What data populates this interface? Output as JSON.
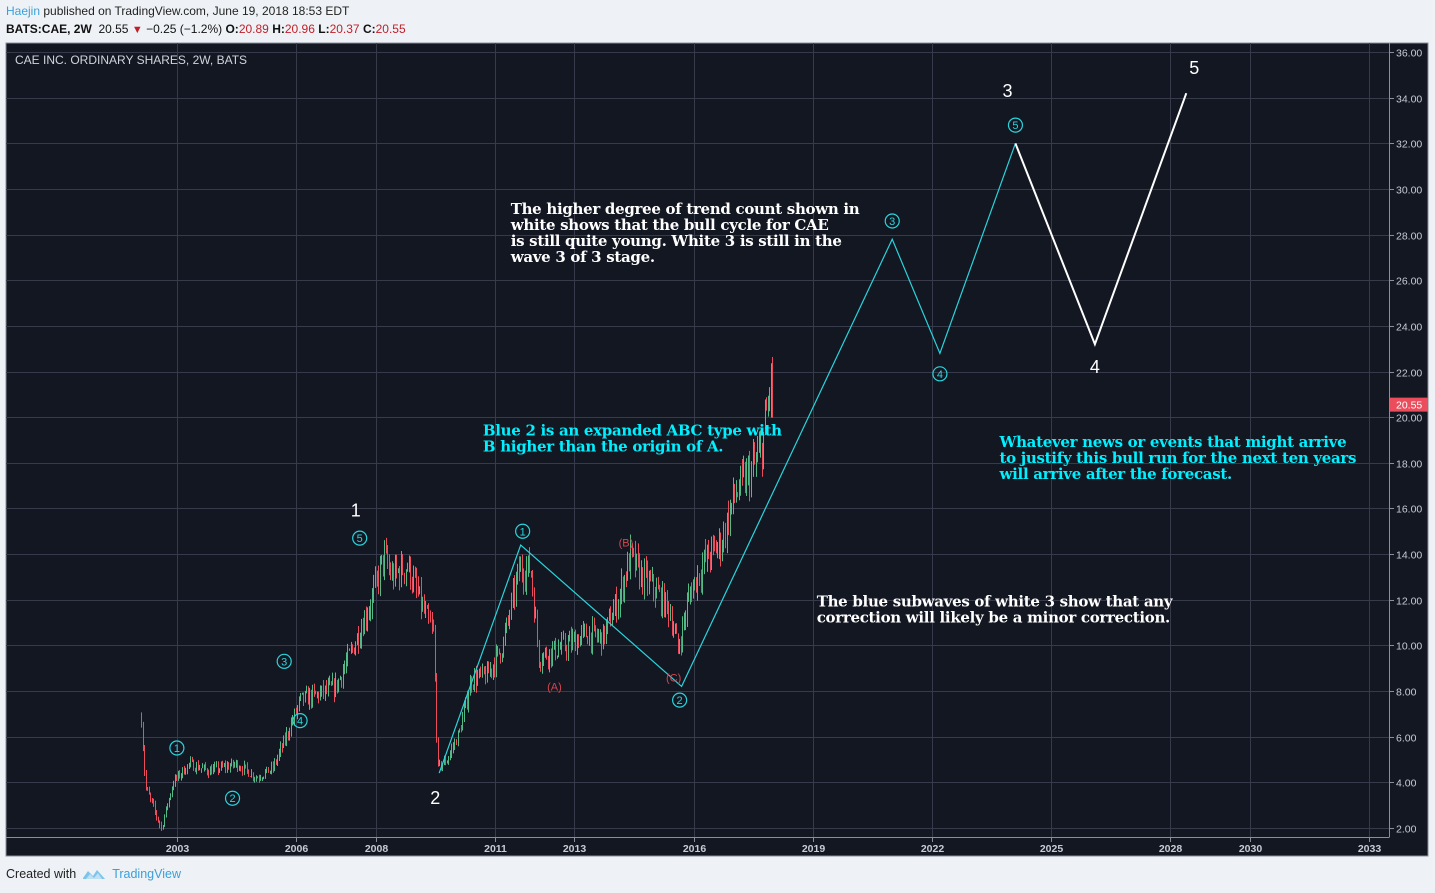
{
  "header": {
    "author": "Haejin",
    "published_text": "published on TradingView.com, June 19, 2018 18:53 EDT",
    "symbol": "BATS:CAE, 2W",
    "last": "20.55",
    "change": "−0.25 (−1.2%)",
    "open_label": "O:",
    "open": "20.89",
    "high_label": "H:",
    "high": "20.96",
    "low_label": "L:",
    "low": "20.37",
    "close_label": "C:",
    "close": "20.55"
  },
  "footer": {
    "created_with": "Created with",
    "brand": "TradingView"
  },
  "colors": {
    "background": "#131722",
    "grid": "#363a4a",
    "up": "#53b987",
    "down": "#eb4d5c",
    "wave_blue": "#2ad4dc",
    "wave_white": "#ffffff",
    "abc_red": "#d64550",
    "price_tag": "#eb4d5c",
    "note_cyan": "#00f0ff"
  },
  "chart_data": {
    "type": "candlestick",
    "title": "CAE INC. ORDINARY SHARES, 2W, BATS",
    "xlabel": "",
    "ylabel": "",
    "xlim": [
      1999.2,
      2034.0
    ],
    "ylim": [
      1.6,
      36.4
    ],
    "x_ticks": [
      "2003",
      "2006",
      "2008",
      "2011",
      "2013",
      "2016",
      "2019",
      "2022",
      "2025",
      "2028",
      "2030",
      "2033"
    ],
    "y_ticks": [
      "2.00",
      "4.00",
      "6.00",
      "8.00",
      "10.00",
      "12.00",
      "14.00",
      "16.00",
      "18.00",
      "20.00",
      "22.00",
      "24.00",
      "26.00",
      "28.00",
      "30.00",
      "32.00",
      "34.00",
      "36.00"
    ],
    "last_price_label": "20.55",
    "price_path": [
      [
        2002.6,
        6.8
      ],
      [
        2002.7,
        3.8
      ],
      [
        2003.1,
        2.0
      ],
      [
        2003.4,
        4.0
      ],
      [
        2003.8,
        4.8
      ],
      [
        2004.3,
        4.5
      ],
      [
        2005.0,
        4.8
      ],
      [
        2005.5,
        4.2
      ],
      [
        2005.9,
        4.6
      ],
      [
        2006.2,
        5.8
      ],
      [
        2006.6,
        7.6
      ],
      [
        2007.0,
        7.8
      ],
      [
        2007.5,
        8.2
      ],
      [
        2007.9,
        9.8
      ],
      [
        2008.4,
        12.0
      ],
      [
        2008.7,
        13.9
      ],
      [
        2008.9,
        13.0
      ],
      [
        2009.3,
        13.5
      ],
      [
        2009.7,
        11.5
      ],
      [
        2009.95,
        10.5
      ],
      [
        2010.05,
        4.6
      ],
      [
        2010.3,
        5.0
      ],
      [
        2010.6,
        6.2
      ],
      [
        2010.9,
        8.5
      ],
      [
        2011.3,
        8.7
      ],
      [
        2011.7,
        10.0
      ],
      [
        2012.1,
        13.3
      ],
      [
        2012.4,
        13.4
      ],
      [
        2012.6,
        9.5
      ],
      [
        2012.9,
        9.7
      ],
      [
        2013.3,
        10.0
      ],
      [
        2013.8,
        10.5
      ],
      [
        2014.2,
        10.3
      ],
      [
        2014.6,
        12.0
      ],
      [
        2014.9,
        13.9
      ],
      [
        2015.2,
        13.0
      ],
      [
        2015.5,
        12.5
      ],
      [
        2015.9,
        11.5
      ],
      [
        2016.1,
        9.8
      ],
      [
        2016.4,
        12.3
      ],
      [
        2016.8,
        13.8
      ],
      [
        2017.2,
        14.5
      ],
      [
        2017.5,
        16.5
      ],
      [
        2017.9,
        17.5
      ],
      [
        2018.2,
        18.5
      ],
      [
        2018.45,
        21.6
      ],
      [
        2018.5,
        20.55
      ]
    ],
    "blue_wave_line": [
      [
        2010.1,
        4.4
      ],
      [
        2012.15,
        14.4
      ],
      [
        2016.2,
        8.2
      ],
      [
        2021.5,
        27.8
      ],
      [
        2022.7,
        22.8
      ],
      [
        2024.6,
        32.0
      ]
    ],
    "white_wave_line": [
      [
        2024.6,
        32.0
      ],
      [
        2026.6,
        23.2
      ],
      [
        2028.9,
        34.2
      ]
    ],
    "annotations": [
      {
        "text": "①",
        "x": 2003.5,
        "y": 5.5,
        "color": "blue"
      },
      {
        "text": "②",
        "x": 2004.9,
        "y": 3.3,
        "color": "blue"
      },
      {
        "text": "③",
        "x": 2006.2,
        "y": 9.3,
        "color": "blue"
      },
      {
        "text": "④",
        "x": 2006.6,
        "y": 6.7,
        "color": "blue"
      },
      {
        "text": "⑤",
        "x": 2008.1,
        "y": 14.7,
        "color": "blue"
      },
      {
        "text": "1",
        "x": 2008.0,
        "y": 15.9,
        "color": "white"
      },
      {
        "text": "2",
        "x": 2010.0,
        "y": 3.3,
        "color": "white"
      },
      {
        "text": "①",
        "x": 2012.2,
        "y": 15.0,
        "color": "blue"
      },
      {
        "text": "(A)",
        "x": 2013.0,
        "y": 8.2,
        "color": "red"
      },
      {
        "text": "(B)",
        "x": 2014.8,
        "y": 14.5,
        "color": "red"
      },
      {
        "text": "(C)",
        "x": 2016.0,
        "y": 8.6,
        "color": "red"
      },
      {
        "text": "②",
        "x": 2016.15,
        "y": 7.6,
        "color": "blue"
      },
      {
        "text": "③",
        "x": 2021.5,
        "y": 28.6,
        "color": "blue"
      },
      {
        "text": "④",
        "x": 2022.7,
        "y": 21.9,
        "color": "blue"
      },
      {
        "text": "⑤",
        "x": 2024.6,
        "y": 32.8,
        "color": "blue"
      },
      {
        "text": "3",
        "x": 2024.4,
        "y": 34.3,
        "color": "white"
      },
      {
        "text": "4",
        "x": 2026.6,
        "y": 22.2,
        "color": "white"
      },
      {
        "text": "5",
        "x": 2029.1,
        "y": 35.3,
        "color": "white"
      }
    ],
    "notes": [
      {
        "color": "white",
        "x": 2011.9,
        "y": 28.9,
        "lines": [
          "The higher degree of trend count shown in",
          "white shows that the bull cycle for CAE",
          "is still quite young. White 3 is still in the",
          "wave 3 of 3 stage."
        ]
      },
      {
        "color": "cyan",
        "x": 2011.2,
        "y": 19.2,
        "lines": [
          "Blue 2 is an expanded ABC type with",
          "B higher than the origin of A."
        ]
      },
      {
        "color": "cyan",
        "x": 2024.2,
        "y": 18.7,
        "lines": [
          "Whatever news or events that might arrive",
          "to justify this bull run for the next ten years",
          "will arrive after the forecast."
        ]
      },
      {
        "color": "white",
        "x": 2019.6,
        "y": 11.7,
        "lines": [
          "The blue subwaves of white 3 show that any",
          "correction will likely be a minor correction."
        ]
      }
    ]
  }
}
